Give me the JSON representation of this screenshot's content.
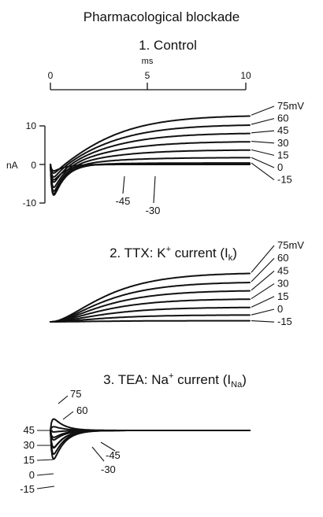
{
  "figure": {
    "title": "Pharmacological blockade"
  },
  "chart_data": [
    {
      "type": "line",
      "panel": "1",
      "title": "1. Control",
      "xlabel": "ms",
      "ylabel": "nA",
      "xlim": [
        0,
        10
      ],
      "ylim": [
        -15,
        15
      ],
      "x_ticks": [
        "0",
        "5",
        "10"
      ],
      "y_ticks": [
        "10",
        "0",
        "-10"
      ],
      "right_labels": [
        "75mV",
        "60",
        "45",
        "30",
        "15",
        "0",
        "-15"
      ],
      "inline_labels": [
        "-45",
        "-30"
      ],
      "series": [
        {
          "name": "75mV",
          "peak_inward": -3.5,
          "steady": 12.8
        },
        {
          "name": "60",
          "peak_inward": -5.0,
          "steady": 10.4
        },
        {
          "name": "45",
          "peak_inward": -7.0,
          "steady": 8.2
        },
        {
          "name": "30",
          "peak_inward": -9.0,
          "steady": 6.0
        },
        {
          "name": "15",
          "peak_inward": -10.5,
          "steady": 3.8
        },
        {
          "name": "0",
          "peak_inward": -11.5,
          "steady": 1.8
        },
        {
          "name": "-15",
          "peak_inward": -12.0,
          "steady": 0.4
        },
        {
          "name": "-30",
          "peak_inward": -6.0,
          "steady": 0.1
        },
        {
          "name": "-45",
          "peak_inward": -2.5,
          "steady": 0.0
        }
      ]
    },
    {
      "type": "line",
      "panel": "2",
      "title_prefix": "2. TTX: K",
      "title_sup": "+",
      "title_mid": " current (I",
      "title_sub": "k",
      "title_suffix": ")",
      "xlim": [
        0,
        10
      ],
      "right_labels": [
        "75mV",
        "60",
        "45",
        "30",
        "15",
        "0",
        "-15"
      ],
      "series": [
        {
          "name": "75mV",
          "steady": 12.8
        },
        {
          "name": "60",
          "steady": 10.4
        },
        {
          "name": "45",
          "steady": 8.2
        },
        {
          "name": "30",
          "steady": 6.0
        },
        {
          "name": "15",
          "steady": 3.8
        },
        {
          "name": "0",
          "steady": 1.8
        },
        {
          "name": "-15",
          "steady": 0.3
        }
      ]
    },
    {
      "type": "line",
      "panel": "3",
      "title_prefix": "3. TEA: Na",
      "title_sup": "+",
      "title_mid": " current (I",
      "title_sub": "Na",
      "title_suffix": ")",
      "xlim": [
        0,
        10
      ],
      "right_labels": [
        "75",
        "60"
      ],
      "left_labels": [
        "45",
        "30",
        "15",
        "0",
        "-15"
      ],
      "inline_labels": [
        "-45",
        "-30"
      ],
      "series": [
        {
          "name": "75",
          "peak": 4.6
        },
        {
          "name": "60",
          "peak": 1.5
        },
        {
          "name": "45",
          "peak": -0.6
        },
        {
          "name": "30",
          "peak": -3.8
        },
        {
          "name": "15",
          "peak": -6.8
        },
        {
          "name": "0",
          "peak": -9.5
        },
        {
          "name": "-15",
          "peak": -11.5
        },
        {
          "name": "-30",
          "peak": -7.0
        },
        {
          "name": "-45",
          "peak": -2.8
        }
      ]
    }
  ]
}
